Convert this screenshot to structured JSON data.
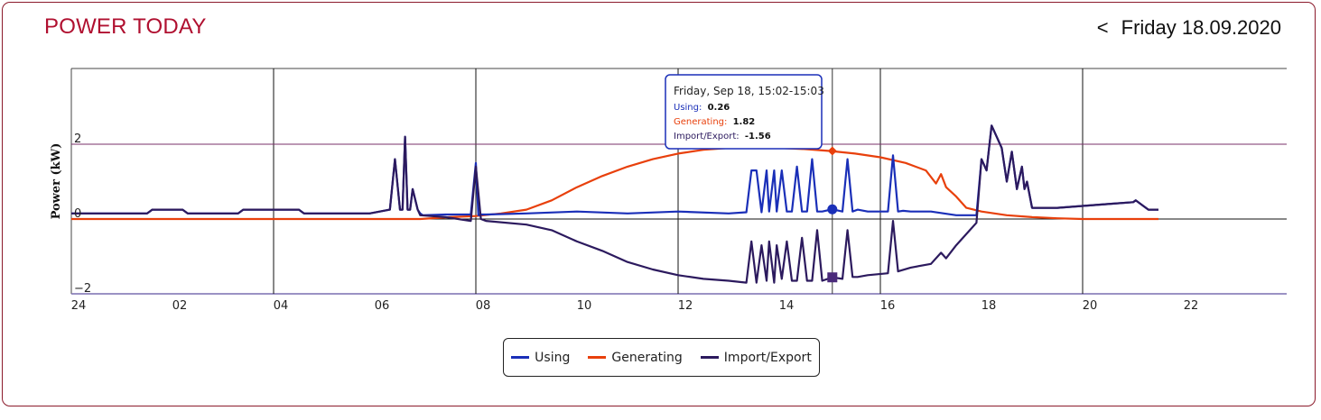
{
  "header": {
    "title": "POWER TODAY",
    "prev_label": "<",
    "date": "Friday 18.09.2020"
  },
  "colors": {
    "using": "#1a2fb8",
    "generating": "#e8400c",
    "import_export": "#2c1a5e",
    "border": "#8b1a2b",
    "title": "#b01030"
  },
  "tooltip": {
    "time": "Friday, Sep 18, 15:02-15:03",
    "using_label": "Using:",
    "using_value": "0.26",
    "generating_label": "Generating:",
    "generating_value": "1.82",
    "import_label": "Import/Export:",
    "import_value": "-1.56"
  },
  "legend": {
    "using": "Using",
    "generating": "Generating",
    "import_export": "Import/Export"
  },
  "chart_data": {
    "type": "line",
    "title": "",
    "xlabel": "",
    "ylabel": "Power (kW)",
    "x_unit": "hour of day",
    "xlim": [
      0,
      24
    ],
    "ylim": [
      -2,
      4
    ],
    "x_ticks": [
      {
        "x": 0,
        "label": "24"
      },
      {
        "x": 2,
        "label": "02"
      },
      {
        "x": 4,
        "label": "04"
      },
      {
        "x": 6,
        "label": "06"
      },
      {
        "x": 8,
        "label": "08"
      },
      {
        "x": 10,
        "label": "10"
      },
      {
        "x": 12,
        "label": "12"
      },
      {
        "x": 14,
        "label": "14"
      },
      {
        "x": 16,
        "label": "16"
      },
      {
        "x": 18,
        "label": "18"
      },
      {
        "x": 20,
        "label": "20"
      },
      {
        "x": 22,
        "label": "22"
      }
    ],
    "y_ticks": [
      {
        "y": 2,
        "label": "2"
      },
      {
        "y": 0,
        "label": "0"
      },
      {
        "y": -2,
        "label": "−2"
      }
    ],
    "grid": true,
    "legend_position": "bottom-center",
    "highlight_x": 15.05,
    "series": [
      {
        "name": "Using",
        "key": "using",
        "x": [
          0,
          1.5,
          1.6,
          2.2,
          2.3,
          3.3,
          3.4,
          4.5,
          4.6,
          5.9,
          6.3,
          6.4,
          6.5,
          6.55,
          6.6,
          6.65,
          6.7,
          6.75,
          6.85,
          6.9,
          6.95,
          7.4,
          7.9,
          8.0,
          8.05,
          8.1,
          8.2,
          9,
          10,
          11,
          12,
          13,
          13.35,
          13.45,
          13.55,
          13.65,
          13.75,
          13.8,
          13.9,
          13.95,
          14.05,
          14.15,
          14.25,
          14.35,
          14.45,
          14.55,
          14.65,
          14.75,
          14.85,
          15.05,
          15.25,
          15.35,
          15.45,
          15.55,
          15.75,
          16.15,
          16.25,
          16.35,
          16.45,
          16.6,
          17,
          17.5,
          17.9,
          18.0,
          18.1,
          18.2,
          18.3,
          18.4,
          18.5,
          18.6,
          18.7,
          18.8,
          18.85,
          18.9,
          19.0,
          19.5,
          20,
          20.5,
          21,
          21.05,
          21.2,
          21.3,
          21.5
        ],
        "values": [
          0.15,
          0.15,
          0.25,
          0.25,
          0.15,
          0.15,
          0.25,
          0.25,
          0.15,
          0.15,
          0.25,
          1.6,
          0.25,
          0.25,
          2.2,
          0.25,
          0.25,
          0.8,
          0.25,
          0.15,
          0.1,
          0.12,
          0.12,
          1.5,
          0.1,
          0.12,
          0.12,
          0.15,
          0.2,
          0.15,
          0.2,
          0.15,
          0.18,
          1.3,
          1.3,
          0.18,
          1.3,
          0.2,
          1.3,
          0.2,
          1.3,
          0.2,
          0.2,
          1.4,
          0.2,
          0.2,
          1.6,
          0.2,
          0.2,
          0.26,
          0.2,
          1.6,
          0.2,
          0.25,
          0.2,
          0.2,
          1.7,
          0.2,
          0.22,
          0.2,
          0.2,
          0.1,
          0.1,
          1.6,
          1.3,
          2.5,
          2.2,
          1.9,
          1.0,
          1.8,
          0.8,
          1.4,
          0.8,
          1.0,
          0.3,
          0.3,
          0.35,
          0.4,
          0.45,
          0.5,
          0.35,
          0.25,
          0.25
        ]
      },
      {
        "name": "Generating",
        "key": "generating",
        "x": [
          0,
          6.9,
          7.5,
          8.0,
          8.5,
          9.0,
          9.5,
          10.0,
          10.5,
          11.0,
          11.5,
          12.0,
          12.5,
          13.0,
          13.5,
          14.0,
          14.5,
          15.0,
          15.5,
          16.0,
          16.5,
          16.9,
          17.1,
          17.2,
          17.3,
          17.5,
          17.7,
          18.0,
          18.5,
          19.0,
          19.5,
          20,
          21.5
        ],
        "values": [
          0,
          0,
          0.05,
          0.08,
          0.15,
          0.25,
          0.5,
          0.85,
          1.15,
          1.4,
          1.6,
          1.75,
          1.85,
          1.9,
          1.92,
          1.9,
          1.87,
          1.82,
          1.75,
          1.65,
          1.5,
          1.3,
          0.95,
          1.2,
          0.85,
          0.6,
          0.3,
          0.2,
          0.1,
          0.05,
          0.02,
          0,
          0
        ]
      },
      {
        "name": "Import/Export",
        "key": "import_export",
        "x": [
          0,
          1.5,
          1.6,
          2.2,
          2.3,
          3.3,
          3.4,
          4.5,
          4.6,
          5.9,
          6.3,
          6.4,
          6.5,
          6.55,
          6.6,
          6.65,
          6.7,
          6.75,
          6.85,
          6.9,
          7.4,
          7.9,
          8.0,
          8.1,
          8.2,
          9.0,
          9.5,
          10.0,
          10.5,
          11.0,
          11.5,
          12.0,
          12.5,
          13.0,
          13.35,
          13.45,
          13.55,
          13.65,
          13.75,
          13.8,
          13.9,
          13.95,
          14.05,
          14.15,
          14.25,
          14.35,
          14.45,
          14.55,
          14.65,
          14.75,
          14.85,
          15.05,
          15.25,
          15.35,
          15.45,
          15.55,
          15.75,
          16.15,
          16.25,
          16.35,
          16.6,
          17.0,
          17.2,
          17.3,
          17.5,
          17.9,
          18.0,
          18.1,
          18.2,
          18.3,
          18.4,
          18.5,
          18.6,
          18.7,
          18.8,
          18.85,
          18.9,
          19.0,
          19.5,
          20,
          20.5,
          21,
          21.05,
          21.2,
          21.3,
          21.5
        ],
        "values": [
          0.15,
          0.15,
          0.25,
          0.25,
          0.15,
          0.15,
          0.25,
          0.25,
          0.15,
          0.15,
          0.25,
          1.6,
          0.25,
          0.25,
          2.2,
          0.25,
          0.25,
          0.8,
          0.25,
          0.1,
          0.05,
          -0.05,
          1.4,
          0,
          -0.05,
          -0.15,
          -0.3,
          -0.6,
          -0.85,
          -1.15,
          -1.35,
          -1.5,
          -1.6,
          -1.65,
          -1.7,
          -0.6,
          -1.7,
          -0.7,
          -1.65,
          -0.6,
          -1.7,
          -0.7,
          -1.6,
          -0.6,
          -1.65,
          -1.65,
          -0.5,
          -1.65,
          -1.65,
          -0.3,
          -1.65,
          -1.56,
          -1.6,
          -0.3,
          -1.55,
          -1.55,
          -1.5,
          -1.45,
          -0.05,
          -1.4,
          -1.3,
          -1.2,
          -0.9,
          -1.05,
          -0.7,
          -0.1,
          1.6,
          1.3,
          2.5,
          2.2,
          1.9,
          1.0,
          1.8,
          0.8,
          1.4,
          0.8,
          1.0,
          0.3,
          0.3,
          0.35,
          0.4,
          0.45,
          0.5,
          0.35,
          0.25,
          0.25
        ]
      }
    ]
  }
}
